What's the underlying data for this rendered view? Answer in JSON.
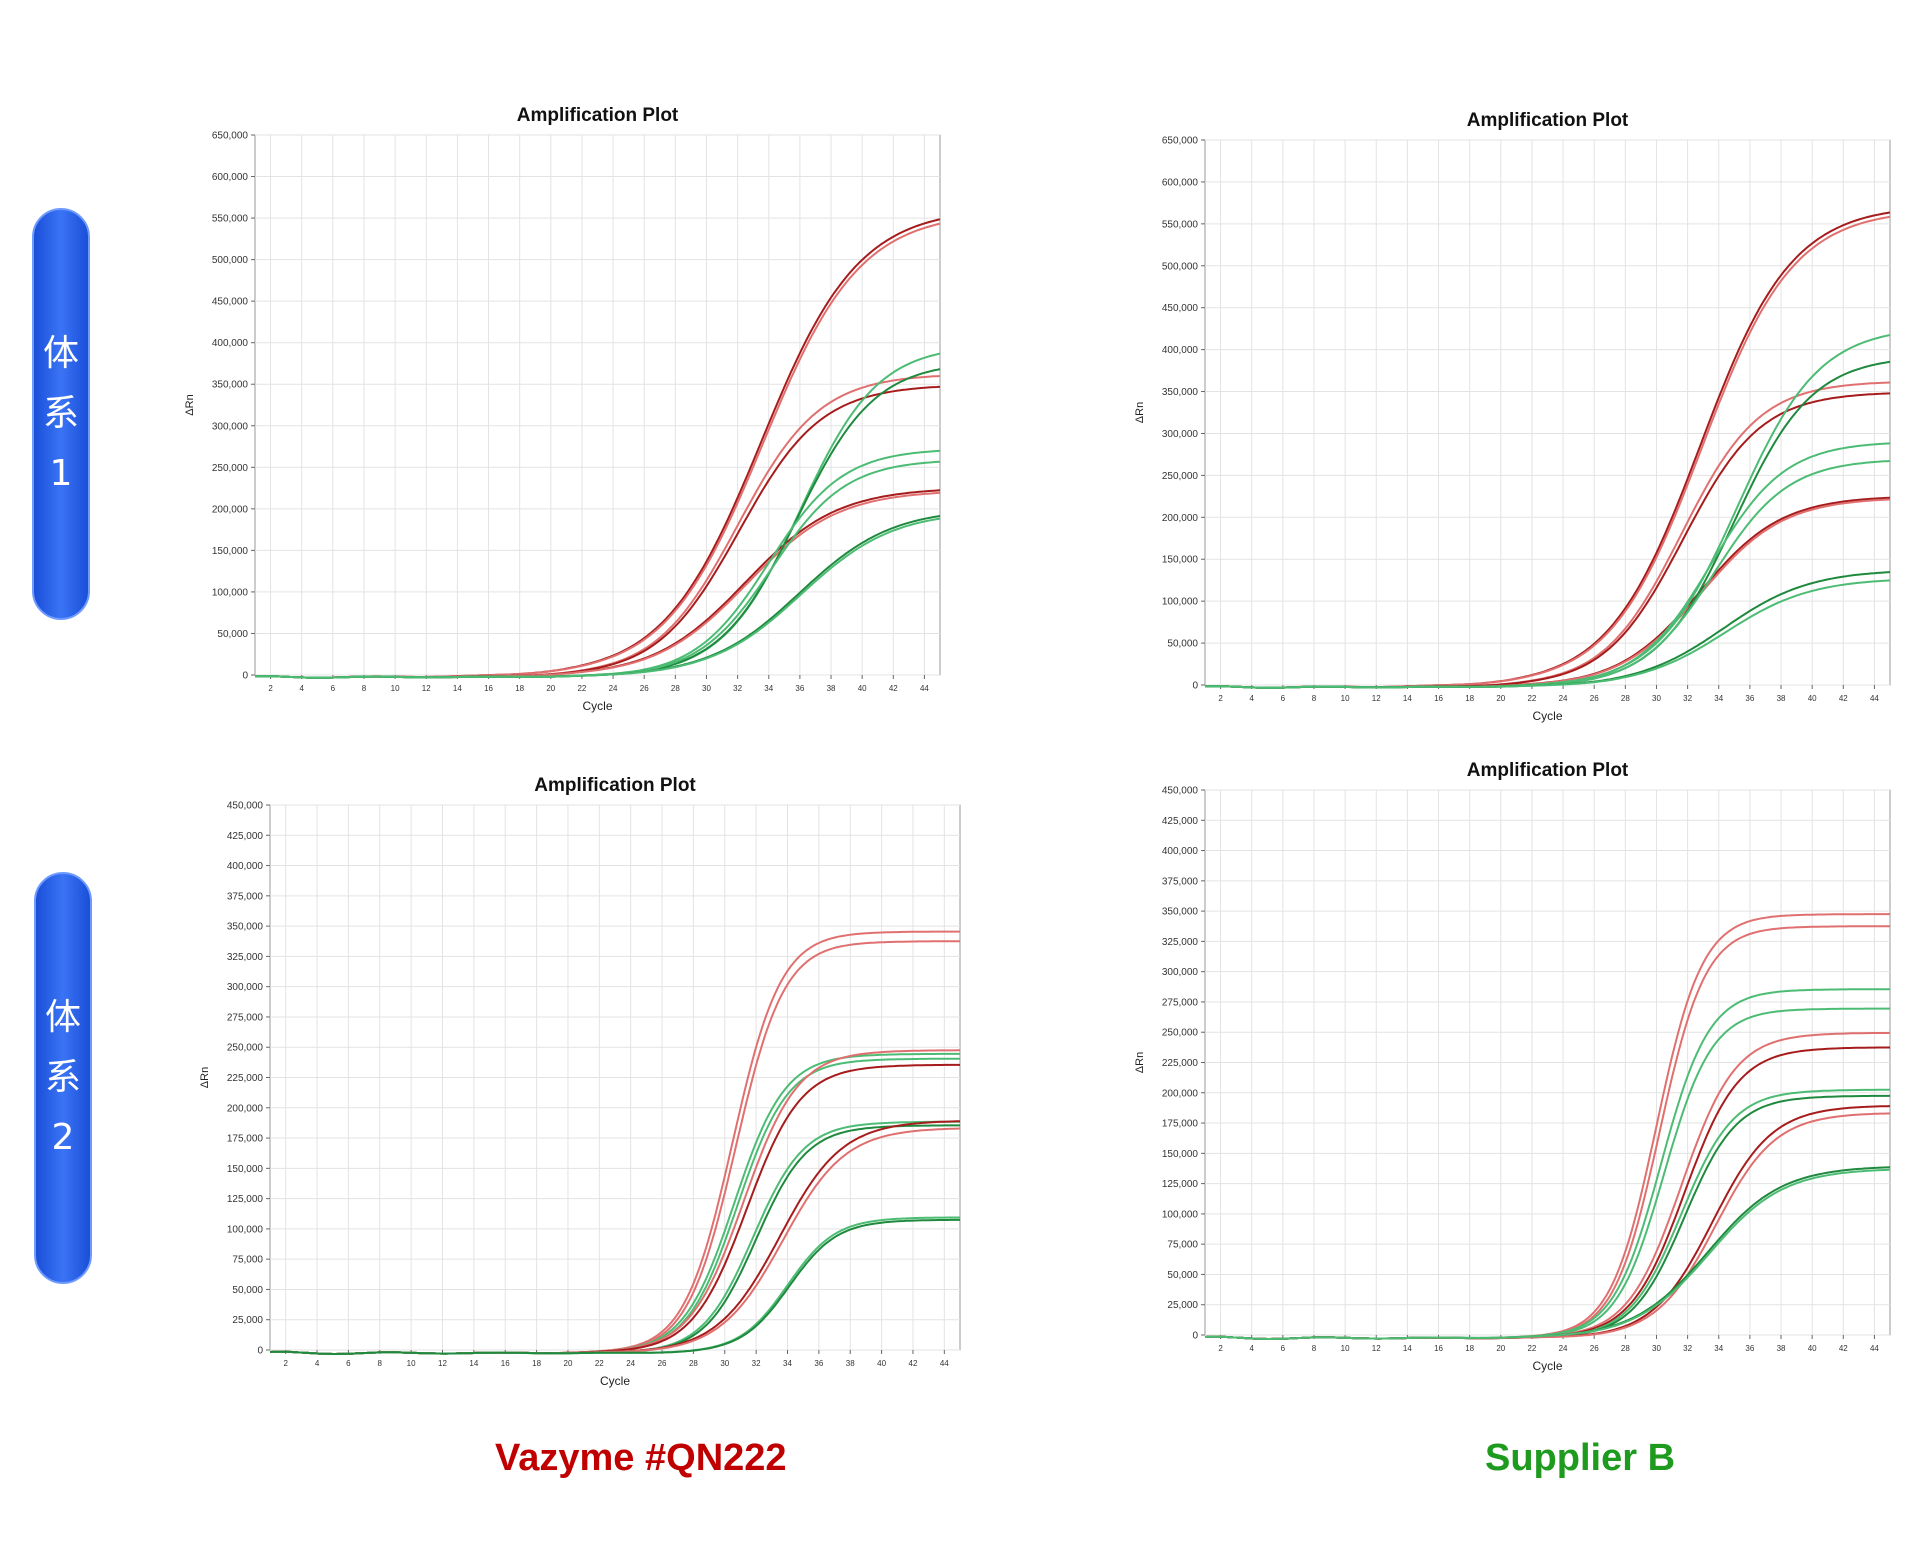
{
  "row_labels": [
    {
      "chars": [
        "体",
        "系",
        "1"
      ]
    },
    {
      "chars": [
        "体",
        "系",
        "2"
      ]
    }
  ],
  "captions": {
    "left": "Vazyme #QN222",
    "right": "Supplier B",
    "left_color": "#c00000",
    "right_color": "#1e9a1e"
  },
  "colors": {
    "dark_red": "#a61c1c",
    "light_red": "#e07070",
    "dark_green": "#1f8a3e",
    "light_green": "#4cbc74"
  },
  "chart_data": [
    {
      "type": "line",
      "title": "Amplification Plot",
      "xlabel": "Cycle",
      "ylabel": "ΔRn",
      "xlim": [
        1,
        45
      ],
      "ylim": [
        0,
        650000
      ],
      "x_ticks": [
        2,
        4,
        6,
        8,
        10,
        12,
        14,
        16,
        18,
        20,
        22,
        24,
        26,
        28,
        30,
        32,
        34,
        36,
        38,
        40,
        42,
        44
      ],
      "y_ticks": [
        0,
        50000,
        100000,
        150000,
        200000,
        250000,
        300000,
        350000,
        400000,
        450000,
        500000,
        550000,
        600000,
        650000
      ],
      "y_tick_labels": [
        "0",
        "50,000",
        "100,000",
        "150,000",
        "200,000",
        "250,000",
        "300,000",
        "350,000",
        "400,000",
        "450,000",
        "500,000",
        "550,000",
        "600,000",
        "650,000"
      ],
      "grid": true,
      "series": [
        {
          "color": "#a61c1c",
          "plateau": 565000,
          "midpoint": 33.5,
          "slope": 0.32
        },
        {
          "color": "#e07070",
          "plateau": 560000,
          "midpoint": 33.6,
          "slope": 0.32
        },
        {
          "color": "#e07070",
          "plateau": 365000,
          "midpoint": 32.0,
          "slope": 0.38
        },
        {
          "color": "#a61c1c",
          "plateau": 352000,
          "midpoint": 32.1,
          "slope": 0.38
        },
        {
          "color": "#a61c1c",
          "plateau": 228000,
          "midpoint": 32.5,
          "slope": 0.34
        },
        {
          "color": "#e07070",
          "plateau": 225000,
          "midpoint": 32.6,
          "slope": 0.34
        },
        {
          "color": "#4cbc74",
          "plateau": 400000,
          "midpoint": 36.0,
          "slope": 0.4
        },
        {
          "color": "#1f8a3e",
          "plateau": 380000,
          "midpoint": 35.8,
          "slope": 0.4
        },
        {
          "color": "#4cbc74",
          "plateau": 275000,
          "midpoint": 34.0,
          "slope": 0.42
        },
        {
          "color": "#4cbc74",
          "plateau": 262000,
          "midpoint": 34.2,
          "slope": 0.42
        },
        {
          "color": "#1f8a3e",
          "plateau": 203000,
          "midpoint": 36.0,
          "slope": 0.34
        },
        {
          "color": "#4cbc74",
          "plateau": 200000,
          "midpoint": 36.1,
          "slope": 0.34
        }
      ]
    },
    {
      "type": "line",
      "title": "Amplification Plot",
      "xlabel": "Cycle",
      "ylabel": "ΔRn",
      "xlim": [
        1,
        45
      ],
      "ylim": [
        0,
        650000
      ],
      "x_ticks": [
        2,
        4,
        6,
        8,
        10,
        12,
        14,
        16,
        18,
        20,
        22,
        24,
        26,
        28,
        30,
        32,
        34,
        36,
        38,
        40,
        42,
        44
      ],
      "y_ticks": [
        0,
        50000,
        100000,
        150000,
        200000,
        250000,
        300000,
        350000,
        400000,
        450000,
        500000,
        550000,
        600000,
        650000
      ],
      "y_tick_labels": [
        "0",
        "50,000",
        "100,000",
        "150,000",
        "200,000",
        "250,000",
        "300,000",
        "350,000",
        "400,000",
        "450,000",
        "500,000",
        "550,000",
        "600,000",
        "650,000"
      ],
      "grid": true,
      "series": [
        {
          "color": "#a61c1c",
          "plateau": 575000,
          "midpoint": 32.8,
          "slope": 0.34
        },
        {
          "color": "#e07070",
          "plateau": 570000,
          "midpoint": 32.9,
          "slope": 0.34
        },
        {
          "color": "#e07070",
          "plateau": 365000,
          "midpoint": 31.6,
          "slope": 0.4
        },
        {
          "color": "#a61c1c",
          "plateau": 352000,
          "midpoint": 31.7,
          "slope": 0.4
        },
        {
          "color": "#a61c1c",
          "plateau": 228000,
          "midpoint": 32.8,
          "slope": 0.38
        },
        {
          "color": "#e07070",
          "plateau": 226000,
          "midpoint": 32.9,
          "slope": 0.38
        },
        {
          "color": "#4cbc74",
          "plateau": 430000,
          "midpoint": 35.2,
          "slope": 0.38
        },
        {
          "color": "#1f8a3e",
          "plateau": 395000,
          "midpoint": 35.0,
          "slope": 0.4
        },
        {
          "color": "#4cbc74",
          "plateau": 293000,
          "midpoint": 33.5,
          "slope": 0.42
        },
        {
          "color": "#4cbc74",
          "plateau": 272000,
          "midpoint": 33.7,
          "slope": 0.42
        },
        {
          "color": "#1f8a3e",
          "plateau": 140000,
          "midpoint": 34.3,
          "slope": 0.36
        },
        {
          "color": "#4cbc74",
          "plateau": 130000,
          "midpoint": 34.4,
          "slope": 0.36
        }
      ]
    },
    {
      "type": "line",
      "title": "Amplification Plot",
      "xlabel": "Cycle",
      "ylabel": "ΔRn",
      "xlim": [
        1,
        45
      ],
      "ylim": [
        0,
        450000
      ],
      "x_ticks": [
        2,
        4,
        6,
        8,
        10,
        12,
        14,
        16,
        18,
        20,
        22,
        24,
        26,
        28,
        30,
        32,
        34,
        36,
        38,
        40,
        42,
        44
      ],
      "y_ticks": [
        0,
        25000,
        50000,
        75000,
        100000,
        125000,
        150000,
        175000,
        200000,
        225000,
        250000,
        275000,
        300000,
        325000,
        350000,
        375000,
        400000,
        425000,
        450000
      ],
      "y_tick_labels": [
        "0",
        "25,000",
        "50,000",
        "75,000",
        "100,000",
        "125,000",
        "150,000",
        "175,000",
        "200,000",
        "225,000",
        "250,000",
        "275,000",
        "300,000",
        "325,000",
        "350,000",
        "375,000",
        "400,000",
        "425,000",
        "450,000"
      ],
      "grid": true,
      "series": [
        {
          "color": "#e07070",
          "plateau": 348000,
          "midpoint": 30.5,
          "slope": 0.65
        },
        {
          "color": "#e07070",
          "plateau": 340000,
          "midpoint": 30.7,
          "slope": 0.65
        },
        {
          "color": "#4cbc74",
          "plateau": 247000,
          "midpoint": 30.6,
          "slope": 0.62
        },
        {
          "color": "#4cbc74",
          "plateau": 243000,
          "midpoint": 30.8,
          "slope": 0.62
        },
        {
          "color": "#e07070",
          "plateau": 250000,
          "midpoint": 31.2,
          "slope": 0.58
        },
        {
          "color": "#a61c1c",
          "plateau": 238000,
          "midpoint": 31.4,
          "slope": 0.58
        },
        {
          "color": "#4cbc74",
          "plateau": 191000,
          "midpoint": 31.8,
          "slope": 0.62
        },
        {
          "color": "#1f8a3e",
          "plateau": 188000,
          "midpoint": 32.0,
          "slope": 0.62
        },
        {
          "color": "#a61c1c",
          "plateau": 192000,
          "midpoint": 33.5,
          "slope": 0.5
        },
        {
          "color": "#e07070",
          "plateau": 186000,
          "midpoint": 33.7,
          "slope": 0.5
        },
        {
          "color": "#4cbc74",
          "plateau": 112000,
          "midpoint": 34.0,
          "slope": 0.65
        },
        {
          "color": "#1f8a3e",
          "plateau": 110000,
          "midpoint": 34.1,
          "slope": 0.65
        }
      ]
    },
    {
      "type": "line",
      "title": "Amplification Plot",
      "xlabel": "Cycle",
      "ylabel": "ΔRn",
      "xlim": [
        1,
        45
      ],
      "ylim": [
        0,
        450000
      ],
      "x_ticks": [
        2,
        4,
        6,
        8,
        10,
        12,
        14,
        16,
        18,
        20,
        22,
        24,
        26,
        28,
        30,
        32,
        34,
        36,
        38,
        40,
        42,
        44
      ],
      "y_ticks": [
        0,
        25000,
        50000,
        75000,
        100000,
        125000,
        150000,
        175000,
        200000,
        225000,
        250000,
        275000,
        300000,
        325000,
        350000,
        375000,
        400000,
        425000,
        450000
      ],
      "y_tick_labels": [
        "0",
        "25,000",
        "50,000",
        "75,000",
        "100,000",
        "125,000",
        "150,000",
        "175,000",
        "200,000",
        "225,000",
        "250,000",
        "275,000",
        "300,000",
        "325,000",
        "350,000",
        "375,000",
        "400,000",
        "425,000",
        "450,000"
      ],
      "grid": true,
      "series": [
        {
          "color": "#e07070",
          "plateau": 350000,
          "midpoint": 30.0,
          "slope": 0.68
        },
        {
          "color": "#e07070",
          "plateau": 340000,
          "midpoint": 30.2,
          "slope": 0.68
        },
        {
          "color": "#4cbc74",
          "plateau": 288000,
          "midpoint": 30.3,
          "slope": 0.65
        },
        {
          "color": "#4cbc74",
          "plateau": 272000,
          "midpoint": 30.5,
          "slope": 0.65
        },
        {
          "color": "#e07070",
          "plateau": 252000,
          "midpoint": 31.6,
          "slope": 0.58
        },
        {
          "color": "#a61c1c",
          "plateau": 240000,
          "midpoint": 31.8,
          "slope": 0.58
        },
        {
          "color": "#4cbc74",
          "plateau": 205000,
          "midpoint": 31.6,
          "slope": 0.6
        },
        {
          "color": "#1f8a3e",
          "plateau": 200000,
          "midpoint": 31.8,
          "slope": 0.6
        },
        {
          "color": "#a61c1c",
          "plateau": 192000,
          "midpoint": 33.6,
          "slope": 0.52
        },
        {
          "color": "#e07070",
          "plateau": 186000,
          "midpoint": 33.8,
          "slope": 0.52
        },
        {
          "color": "#1f8a3e",
          "plateau": 142000,
          "midpoint": 33.3,
          "slope": 0.42
        },
        {
          "color": "#4cbc74",
          "plateau": 140000,
          "midpoint": 33.4,
          "slope": 0.42
        }
      ]
    }
  ]
}
